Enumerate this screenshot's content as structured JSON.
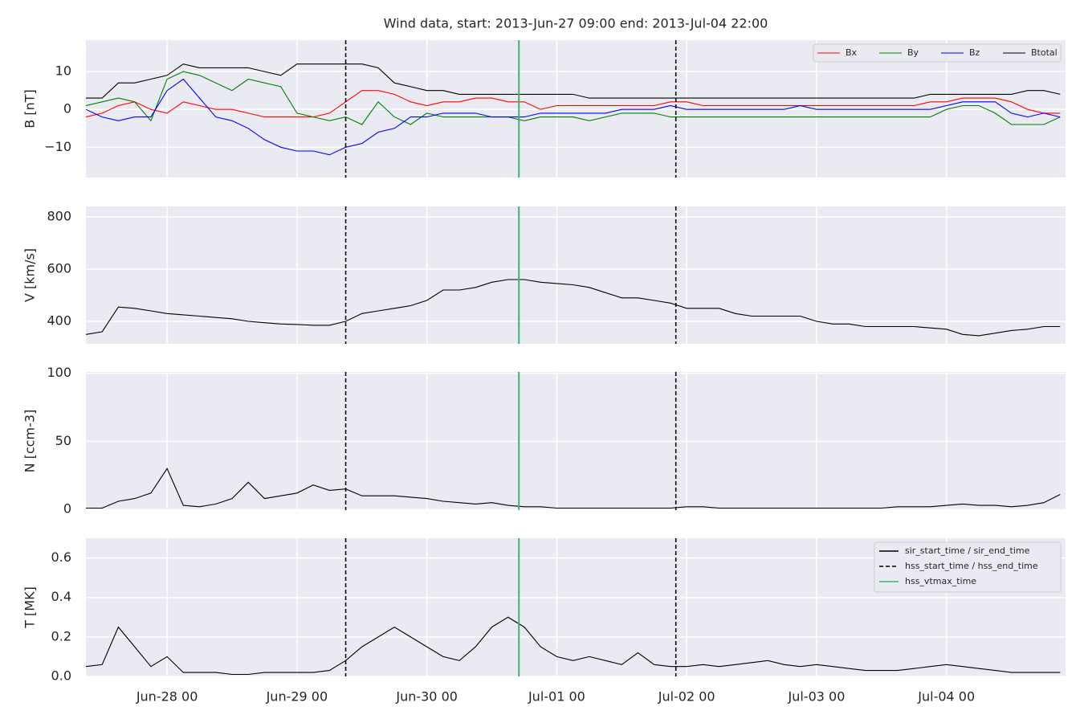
{
  "title": "Wind data, start: 2013-Jun-27 09:00  end: 2013-Jul-04 22:00",
  "xticks": [
    "Jun-28 00",
    "Jun-29 00",
    "Jun-30 00",
    "Jul-01 00",
    "Jul-02 00",
    "Jul-03 00",
    "Jul-04 00"
  ],
  "markers": [
    {
      "name": "sir_start_time / sir_end_time",
      "color": "#000000",
      "dashed": false,
      "x": []
    },
    {
      "name": "hss_start_time / hss_end_time",
      "color": "#000000",
      "dashed": true,
      "x": [
        "Jun-29 09",
        "Jul-01 22"
      ]
    },
    {
      "name": "hss_vtmax_time",
      "color": "#3cb371",
      "dashed": false,
      "x": [
        "Jun-30 17"
      ]
    }
  ],
  "markers_legend": "upper right",
  "chart_data": [
    {
      "type": "line",
      "ylabel": "B [nT]",
      "xlim": [
        "Jun-27 09",
        "Jul-04 22"
      ],
      "ylim": [
        -18,
        18.3
      ],
      "yticks": [
        {
          "value": -10,
          "label": "−10"
        },
        0,
        10
      ],
      "grid": true,
      "legend": "upper right",
      "x": [
        "Jun-27 09",
        "Jun-27 12",
        "Jun-27 15",
        "Jun-27 18",
        "Jun-27 21",
        "Jun-28 00",
        "Jun-28 03",
        "Jun-28 06",
        "Jun-28 09",
        "Jun-28 12",
        "Jun-28 15",
        "Jun-28 18",
        "Jun-28 21",
        "Jun-29 00",
        "Jun-29 03",
        "Jun-29 06",
        "Jun-29 09",
        "Jun-29 12",
        "Jun-29 15",
        "Jun-29 18",
        "Jun-29 21",
        "Jun-30 00",
        "Jun-30 03",
        "Jun-30 06",
        "Jun-30 09",
        "Jun-30 12",
        "Jun-30 15",
        "Jun-30 18",
        "Jun-30 21",
        "Jul-01 00",
        "Jul-01 03",
        "Jul-01 06",
        "Jul-01 09",
        "Jul-01 12",
        "Jul-01 15",
        "Jul-01 18",
        "Jul-01 21",
        "Jul-02 00",
        "Jul-02 03",
        "Jul-02 06",
        "Jul-02 09",
        "Jul-02 12",
        "Jul-02 15",
        "Jul-02 18",
        "Jul-02 21",
        "Jul-03 00",
        "Jul-03 03",
        "Jul-03 06",
        "Jul-03 09",
        "Jul-03 12",
        "Jul-03 15",
        "Jul-03 18",
        "Jul-03 21",
        "Jul-04 00",
        "Jul-04 03",
        "Jul-04 06",
        "Jul-04 09",
        "Jul-04 12",
        "Jul-04 15",
        "Jul-04 18",
        "Jul-04 21"
      ],
      "series": [
        {
          "name": "Bx",
          "color": "#ff0000",
          "values": [
            -2,
            -1,
            1,
            2,
            0,
            -1,
            2,
            1,
            0,
            0,
            -1,
            -2,
            -2,
            -2,
            -2,
            -1,
            2,
            5,
            5,
            4,
            2,
            1,
            2,
            2,
            3,
            3,
            2,
            2,
            0,
            1,
            1,
            1,
            1,
            1,
            1,
            1,
            2,
            2,
            1,
            1,
            1,
            1,
            1,
            1,
            1,
            1,
            1,
            1,
            1,
            1,
            1,
            1,
            2,
            2,
            3,
            3,
            3,
            2,
            0,
            -1,
            -1
          ]
        },
        {
          "name": "By",
          "color": "#008000",
          "values": [
            1,
            2,
            3,
            2,
            -3,
            8,
            10,
            9,
            7,
            5,
            8,
            7,
            6,
            -1,
            -2,
            -3,
            -2,
            -4,
            2,
            -2,
            -4,
            -1,
            -2,
            -2,
            -2,
            -2,
            -2,
            -3,
            -2,
            -2,
            -2,
            -3,
            -2,
            -1,
            -1,
            -1,
            -2,
            -2,
            -2,
            -2,
            -2,
            -2,
            -2,
            -2,
            -2,
            -2,
            -2,
            -2,
            -2,
            -2,
            -2,
            -2,
            -2,
            0,
            1,
            1,
            -1,
            -4,
            -4,
            -4,
            -2
          ]
        },
        {
          "name": "Bz",
          "color": "#0000ff",
          "values": [
            0,
            -2,
            -3,
            -2,
            -2,
            5,
            8,
            3,
            -2,
            -3,
            -5,
            -8,
            -10,
            -11,
            -11,
            -12,
            -10,
            -9,
            -6,
            -5,
            -2,
            -2,
            -1,
            -1,
            -1,
            -2,
            -2,
            -2,
            -1,
            -1,
            -1,
            -1,
            -1,
            0,
            0,
            0,
            1,
            0,
            0,
            0,
            0,
            0,
            0,
            0,
            1,
            0,
            0,
            0,
            0,
            0,
            0,
            0,
            0,
            1,
            2,
            2,
            2,
            -1,
            -2,
            -1,
            -2
          ]
        },
        {
          "name": "Btotal",
          "color": "#000000",
          "values": [
            3,
            3,
            7,
            7,
            8,
            9,
            12,
            11,
            11,
            11,
            11,
            10,
            9,
            12,
            12,
            12,
            12,
            12,
            11,
            7,
            6,
            5,
            5,
            4,
            4,
            4,
            4,
            4,
            4,
            4,
            4,
            3,
            3,
            3,
            3,
            3,
            3,
            3,
            3,
            3,
            3,
            3,
            3,
            3,
            3,
            3,
            3,
            3,
            3,
            3,
            3,
            3,
            4,
            4,
            4,
            4,
            4,
            4,
            5,
            5,
            4
          ]
        }
      ]
    },
    {
      "type": "line",
      "ylabel": "V [km/s]",
      "xlim": [
        "Jun-27 09",
        "Jul-04 22"
      ],
      "ylim": [
        314,
        840
      ],
      "yticks": [
        400,
        600,
        800
      ],
      "grid": true,
      "color": "#000000",
      "x": [
        "Jun-27 09",
        "Jun-27 12",
        "Jun-27 15",
        "Jun-27 18",
        "Jun-27 21",
        "Jun-28 00",
        "Jun-28 03",
        "Jun-28 06",
        "Jun-28 09",
        "Jun-28 12",
        "Jun-28 15",
        "Jun-28 18",
        "Jun-28 21",
        "Jun-29 00",
        "Jun-29 03",
        "Jun-29 06",
        "Jun-29 09",
        "Jun-29 12",
        "Jun-29 15",
        "Jun-29 18",
        "Jun-29 21",
        "Jun-30 00",
        "Jun-30 03",
        "Jun-30 06",
        "Jun-30 09",
        "Jun-30 12",
        "Jun-30 15",
        "Jun-30 18",
        "Jun-30 21",
        "Jul-01 00",
        "Jul-01 03",
        "Jul-01 06",
        "Jul-01 09",
        "Jul-01 12",
        "Jul-01 15",
        "Jul-01 18",
        "Jul-01 21",
        "Jul-02 00",
        "Jul-02 03",
        "Jul-02 06",
        "Jul-02 09",
        "Jul-02 12",
        "Jul-02 15",
        "Jul-02 18",
        "Jul-02 21",
        "Jul-03 00",
        "Jul-03 03",
        "Jul-03 06",
        "Jul-03 09",
        "Jul-03 12",
        "Jul-03 15",
        "Jul-03 18",
        "Jul-03 21",
        "Jul-04 00",
        "Jul-04 03",
        "Jul-04 06",
        "Jul-04 09",
        "Jul-04 12",
        "Jul-04 15",
        "Jul-04 18",
        "Jul-04 21"
      ],
      "values": [
        350,
        360,
        455,
        450,
        440,
        430,
        425,
        420,
        415,
        410,
        400,
        395,
        390,
        388,
        385,
        385,
        400,
        430,
        440,
        450,
        460,
        480,
        520,
        520,
        530,
        550,
        560,
        560,
        550,
        545,
        540,
        530,
        510,
        490,
        490,
        480,
        470,
        450,
        450,
        450,
        430,
        420,
        420,
        420,
        420,
        400,
        390,
        390,
        380,
        380,
        380,
        380,
        375,
        370,
        350,
        345,
        355,
        365,
        370,
        380,
        380
      ]
    },
    {
      "type": "line",
      "ylabel": "N [ccm-3]",
      "xlim": [
        "Jun-27 09",
        "Jul-04 22"
      ],
      "ylim": [
        -0.5,
        101
      ],
      "yticks": [
        0,
        50,
        100
      ],
      "grid": true,
      "color": "#000000",
      "x": [
        "Jun-27 09",
        "Jun-27 12",
        "Jun-27 15",
        "Jun-27 18",
        "Jun-27 21",
        "Jun-28 00",
        "Jun-28 03",
        "Jun-28 06",
        "Jun-28 09",
        "Jun-28 12",
        "Jun-28 15",
        "Jun-28 18",
        "Jun-28 21",
        "Jun-29 00",
        "Jun-29 03",
        "Jun-29 06",
        "Jun-29 09",
        "Jun-29 12",
        "Jun-29 15",
        "Jun-29 18",
        "Jun-29 21",
        "Jun-30 00",
        "Jun-30 03",
        "Jun-30 06",
        "Jun-30 09",
        "Jun-30 12",
        "Jun-30 15",
        "Jun-30 18",
        "Jun-30 21",
        "Jul-01 00",
        "Jul-01 03",
        "Jul-01 06",
        "Jul-01 09",
        "Jul-01 12",
        "Jul-01 15",
        "Jul-01 18",
        "Jul-01 21",
        "Jul-02 00",
        "Jul-02 03",
        "Jul-02 06",
        "Jul-02 09",
        "Jul-02 12",
        "Jul-02 15",
        "Jul-02 18",
        "Jul-02 21",
        "Jul-03 00",
        "Jul-03 03",
        "Jul-03 06",
        "Jul-03 09",
        "Jul-03 12",
        "Jul-03 15",
        "Jul-03 18",
        "Jul-03 21",
        "Jul-04 00",
        "Jul-04 03",
        "Jul-04 06",
        "Jul-04 09",
        "Jul-04 12",
        "Jul-04 15",
        "Jul-04 18",
        "Jul-04 21"
      ],
      "values": [
        1,
        1,
        6,
        8,
        12,
        30,
        3,
        2,
        4,
        8,
        20,
        8,
        10,
        12,
        18,
        14,
        15,
        10,
        10,
        10,
        9,
        8,
        6,
        5,
        4,
        5,
        3,
        2,
        2,
        1,
        1,
        1,
        1,
        1,
        1,
        1,
        1,
        2,
        2,
        1,
        1,
        1,
        1,
        1,
        1,
        1,
        1,
        1,
        1,
        1,
        2,
        2,
        2,
        3,
        4,
        3,
        3,
        2,
        3,
        5,
        11
      ]
    },
    {
      "type": "line",
      "ylabel": "T [MK]",
      "xlim": [
        "Jun-27 09",
        "Jul-04 22"
      ],
      "ylim": [
        0,
        0.7
      ],
      "yticks": [
        {
          "value": 0,
          "label": "0.0"
        },
        0.2,
        0.4,
        0.6
      ],
      "grid": true,
      "color": "#000000",
      "x": [
        "Jun-27 09",
        "Jun-27 12",
        "Jun-27 15",
        "Jun-27 18",
        "Jun-27 21",
        "Jun-28 00",
        "Jun-28 03",
        "Jun-28 06",
        "Jun-28 09",
        "Jun-28 12",
        "Jun-28 15",
        "Jun-28 18",
        "Jun-28 21",
        "Jun-29 00",
        "Jun-29 03",
        "Jun-29 06",
        "Jun-29 09",
        "Jun-29 12",
        "Jun-29 15",
        "Jun-29 18",
        "Jun-29 21",
        "Jun-30 00",
        "Jun-30 03",
        "Jun-30 06",
        "Jun-30 09",
        "Jun-30 12",
        "Jun-30 15",
        "Jun-30 18",
        "Jun-30 21",
        "Jul-01 00",
        "Jul-01 03",
        "Jul-01 06",
        "Jul-01 09",
        "Jul-01 12",
        "Jul-01 15",
        "Jul-01 18",
        "Jul-01 21",
        "Jul-02 00",
        "Jul-02 03",
        "Jul-02 06",
        "Jul-02 09",
        "Jul-02 12",
        "Jul-02 15",
        "Jul-02 18",
        "Jul-02 21",
        "Jul-03 00",
        "Jul-03 03",
        "Jul-03 06",
        "Jul-03 09",
        "Jul-03 12",
        "Jul-03 15",
        "Jul-03 18",
        "Jul-03 21",
        "Jul-04 00",
        "Jul-04 03",
        "Jul-04 06",
        "Jul-04 09",
        "Jul-04 12",
        "Jul-04 15",
        "Jul-04 18",
        "Jul-04 21"
      ],
      "values": [
        0.05,
        0.06,
        0.25,
        0.15,
        0.05,
        0.1,
        0.02,
        0.02,
        0.02,
        0.01,
        0.01,
        0.02,
        0.02,
        0.02,
        0.02,
        0.03,
        0.08,
        0.15,
        0.2,
        0.25,
        0.2,
        0.15,
        0.1,
        0.08,
        0.15,
        0.25,
        0.3,
        0.25,
        0.15,
        0.1,
        0.08,
        0.1,
        0.08,
        0.06,
        0.12,
        0.06,
        0.05,
        0.05,
        0.06,
        0.05,
        0.06,
        0.07,
        0.08,
        0.06,
        0.05,
        0.06,
        0.05,
        0.04,
        0.03,
        0.03,
        0.03,
        0.04,
        0.05,
        0.06,
        0.05,
        0.04,
        0.03,
        0.02,
        0.02,
        0.02,
        0.02
      ]
    }
  ]
}
